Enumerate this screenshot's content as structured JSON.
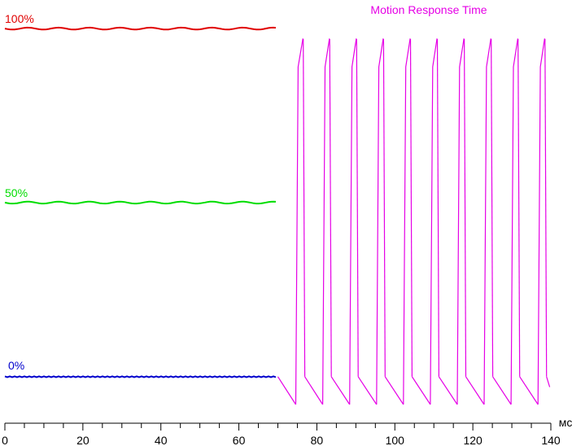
{
  "chart_data": {
    "type": "line",
    "title": "Motion Response Time",
    "title_color": "#e600e6",
    "x_unit": "мс",
    "xlim": [
      0,
      140
    ],
    "x_ticks": [
      "0",
      "20",
      "40",
      "60",
      "80",
      "100",
      "120",
      "140"
    ],
    "minor_tick_step": 5,
    "ylim": [
      -8,
      104
    ],
    "level_labels": [
      {
        "text": "100%",
        "color": "#e00000"
      },
      {
        "text": "50%",
        "color": "#00dd00"
      },
      {
        "text": "0%",
        "color": "#0000cc"
      }
    ],
    "series": [
      {
        "name": "100%",
        "color": "#e00000",
        "x_range": [
          0,
          70
        ],
        "level": 100
      },
      {
        "name": "50%",
        "color": "#00dd00",
        "x_range": [
          0,
          70
        ],
        "level": 50
      },
      {
        "name": "0%",
        "color": "#0000cc",
        "x_range": [
          0,
          70
        ],
        "level": 0
      },
      {
        "name": "Motion Response Time",
        "color": "#e600e6",
        "segments": [
          {
            "x": [
              70,
              74.6
            ],
            "y": [
              0,
              -8
            ]
          },
          {
            "x": [
              74.6,
              75.2,
              76.4,
              76.5
            ],
            "y": [
              -8,
              89,
              97,
              97
            ]
          },
          {
            "x": [
              76.5,
              76.9
            ],
            "y": [
              97,
              0
            ]
          },
          {
            "x": [
              76.9,
              81.5
            ],
            "y": [
              0,
              -8
            ]
          },
          {
            "x": [
              81.5,
              82.1,
              83.2,
              83.3
            ],
            "y": [
              -8,
              89,
              97,
              97
            ]
          },
          {
            "x": [
              83.3,
              83.7
            ],
            "y": [
              97,
              0
            ]
          },
          {
            "x": [
              83.7,
              88.4
            ],
            "y": [
              0,
              -8
            ]
          },
          {
            "x": [
              88.4,
              89.0,
              90.1,
              90.2
            ],
            "y": [
              -8,
              89,
              97,
              97
            ]
          },
          {
            "x": [
              90.2,
              90.6
            ],
            "y": [
              97,
              0
            ]
          },
          {
            "x": [
              90.6,
              95.3
            ],
            "y": [
              0,
              -8
            ]
          },
          {
            "x": [
              95.3,
              95.9,
              97.0,
              97.1
            ],
            "y": [
              -8,
              89,
              97,
              97
            ]
          },
          {
            "x": [
              97.1,
              97.5
            ],
            "y": [
              97,
              0
            ]
          },
          {
            "x": [
              97.5,
              102.2
            ],
            "y": [
              0,
              -8
            ]
          },
          {
            "x": [
              102.2,
              102.8,
              103.9,
              104.0
            ],
            "y": [
              -8,
              89,
              97,
              97
            ]
          },
          {
            "x": [
              104.0,
              104.4
            ],
            "y": [
              97,
              0
            ]
          },
          {
            "x": [
              104.4,
              109.1
            ],
            "y": [
              0,
              -8
            ]
          },
          {
            "x": [
              109.1,
              109.7,
              110.8,
              110.9
            ],
            "y": [
              -8,
              89,
              97,
              97
            ]
          },
          {
            "x": [
              110.9,
              111.3
            ],
            "y": [
              97,
              0
            ]
          },
          {
            "x": [
              111.3,
              116.0
            ],
            "y": [
              0,
              -8
            ]
          },
          {
            "x": [
              116.0,
              116.6,
              117.7,
              117.8
            ],
            "y": [
              -8,
              89,
              97,
              97
            ]
          },
          {
            "x": [
              117.8,
              118.2
            ],
            "y": [
              97,
              0
            ]
          },
          {
            "x": [
              118.2,
              122.9
            ],
            "y": [
              0,
              -8
            ]
          },
          {
            "x": [
              122.9,
              123.5,
              124.6,
              124.7
            ],
            "y": [
              -8,
              89,
              97,
              97
            ]
          },
          {
            "x": [
              124.7,
              125.1
            ],
            "y": [
              97,
              0
            ]
          },
          {
            "x": [
              125.1,
              129.8
            ],
            "y": [
              0,
              -8
            ]
          },
          {
            "x": [
              129.8,
              130.4,
              131.5,
              131.6
            ],
            "y": [
              -8,
              89,
              97,
              97
            ]
          },
          {
            "x": [
              131.6,
              132.0
            ],
            "y": [
              97,
              0
            ]
          },
          {
            "x": [
              132.0,
              136.7
            ],
            "y": [
              0,
              -8
            ]
          },
          {
            "x": [
              136.7,
              137.3,
              138.4,
              138.5
            ],
            "y": [
              -8,
              89,
              97,
              97
            ]
          },
          {
            "x": [
              138.5,
              138.9
            ],
            "y": [
              97,
              0
            ]
          },
          {
            "x": [
              138.9,
              139.7
            ],
            "y": [
              0,
              -3
            ]
          }
        ]
      }
    ],
    "grid": false,
    "legend": "none"
  }
}
